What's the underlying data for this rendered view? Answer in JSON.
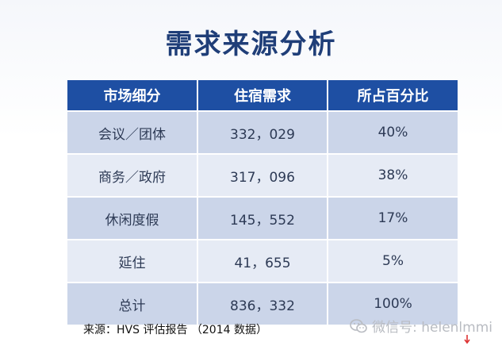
{
  "title": "需求来源分析",
  "table": {
    "headers": [
      "市场细分",
      "住宿需求",
      "所占百分比"
    ],
    "rows": [
      [
        "会议／团体",
        "332，029",
        "40%"
      ],
      [
        "商务／政府",
        "317，096",
        "38%"
      ],
      [
        "休闲度假",
        "145，552",
        "17%"
      ],
      [
        "延住",
        "41，655",
        "5%"
      ],
      [
        "总计",
        "836，332",
        "100%"
      ]
    ]
  },
  "source": "来源：HVS 评估报告 （2014 数据）",
  "watermark": "微信号: helenlmmi",
  "colors": {
    "title": "#1f3e78",
    "header_bg": "#1e4fa3",
    "row_odd": "#cbd5e9",
    "row_even": "#e6ebf5"
  },
  "icons": {
    "watermark_icon": "wechat-icon"
  }
}
